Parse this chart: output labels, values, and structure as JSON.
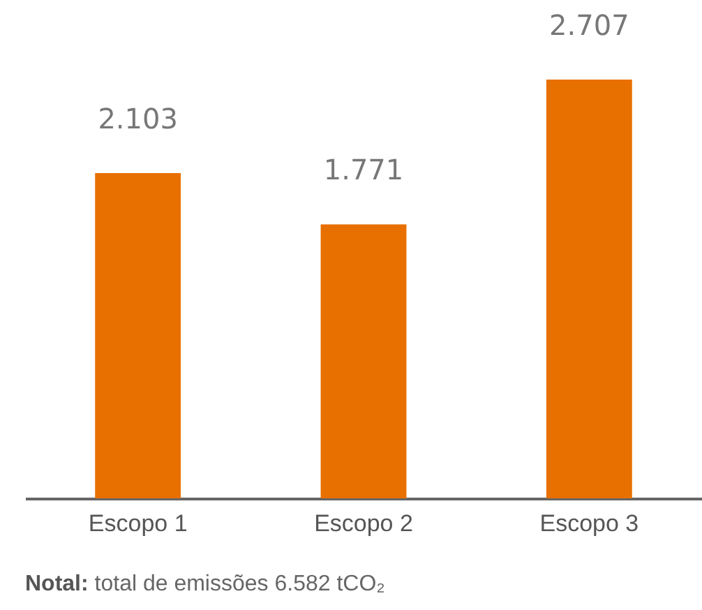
{
  "chart_data": {
    "type": "bar",
    "categories": [
      "Escopo 1",
      "Escopo 2",
      "Escopo 3"
    ],
    "values": [
      2103,
      1771,
      2707
    ],
    "value_labels": [
      "2.103",
      "1.771",
      "2.707"
    ],
    "color": "#e87000",
    "tick_labels": "x",
    "annotations": [
      "Notal: total de emissões 6.582 tCO₂"
    ]
  }
}
